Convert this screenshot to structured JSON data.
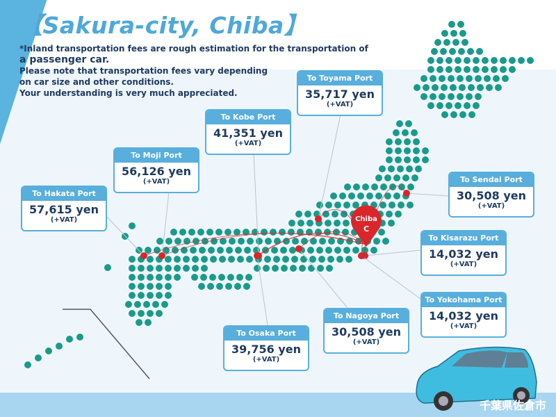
{
  "header": {
    "title": "【Sakura-city, Chiba】",
    "note_line1": "*Inland transportation fees are rough estimation for the transportation of",
    "note_line2": "a passenger car.",
    "note_line3": "Please note that transportation fees vary depending",
    "note_line4": "on car size and other conditions.",
    "note_line5": "Your understanding is very much appreciated."
  },
  "origin": {
    "label": "Chiba",
    "letter": "C",
    "color": "#d9262b"
  },
  "colors": {
    "accent": "#58aedc",
    "map_dots": "#1a9a8a",
    "route": "#d9262b",
    "text": "#1e3a5f"
  },
  "ports": [
    {
      "label": "To Hakata Port",
      "fee": "57,615 yen",
      "vat": "(+VAT)"
    },
    {
      "label": "To Moji Port",
      "fee": "56,126 yen",
      "vat": "(+VAT)"
    },
    {
      "label": "To Kobe Port",
      "fee": "41,351 yen",
      "vat": "(+VAT)"
    },
    {
      "label": "To Toyama Port",
      "fee": "35,717 yen",
      "vat": "(+VAT)"
    },
    {
      "label": "To Sendai Port",
      "fee": "30,508 yen",
      "vat": "(+VAT)"
    },
    {
      "label": "To Kisarazu Port",
      "fee": "14,032 yen",
      "vat": "(+VAT)"
    },
    {
      "label": "To Yokohama Port",
      "fee": "14,032 yen",
      "vat": "(+VAT)"
    },
    {
      "label": "To Nagoya Port",
      "fee": "30,508 yen",
      "vat": "(+VAT)"
    },
    {
      "label": "To Osaka Port",
      "fee": "39,756 yen",
      "vat": "(+VAT)"
    }
  ],
  "footer": {
    "logo_text": "千葉県佐倉市",
    "car_image": "blue-hatchback-car"
  }
}
